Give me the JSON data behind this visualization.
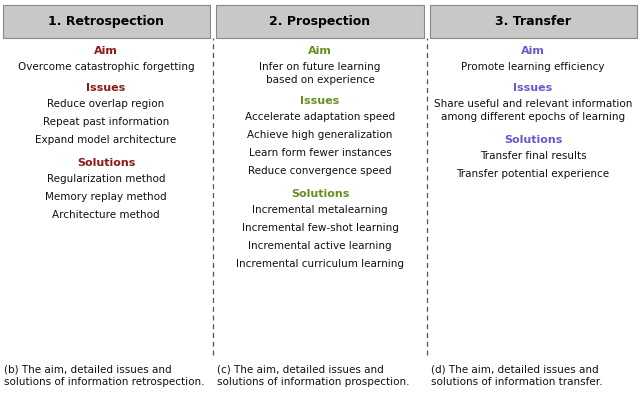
{
  "columns": [
    {
      "title": "1. Retrospection",
      "title_color": "#000000",
      "header_bg": "#c8c8c8",
      "aim_color": "#8B1A1A",
      "issues_color": "#8B1A1A",
      "solutions_color": "#8B1A1A",
      "aim": "Aim",
      "aim_text": [
        "Overcome catastrophic forgetting"
      ],
      "issues": "Issues",
      "issues_text": [
        "Reduce overlap region",
        "Repeat past information",
        "Expand model architecture"
      ],
      "solutions": "Solutions",
      "solutions_text": [
        "Regularization method",
        "Memory replay method",
        "Architecture method"
      ],
      "caption": "(b) The aim, detailed issues and\nsolutions of information retrospection."
    },
    {
      "title": "2. Prospection",
      "title_color": "#000000",
      "header_bg": "#c8c8c8",
      "aim_color": "#6B8E23",
      "issues_color": "#6B8E23",
      "solutions_color": "#6B8E23",
      "aim": "Aim",
      "aim_text": [
        "Infer on future learning\nbased on experience"
      ],
      "issues": "Issues",
      "issues_text": [
        "Accelerate adaptation speed",
        "Achieve high generalization",
        "Learn form fewer instances",
        "Reduce convergence speed"
      ],
      "solutions": "Solutions",
      "solutions_text": [
        "Incremental metalearning",
        "Incremental few-shot learning",
        "Incremental active learning",
        "Incremental curriculum learning"
      ],
      "caption": "(c) The aim, detailed issues and\nsolutions of information prospection."
    },
    {
      "title": "3. Transfer",
      "title_color": "#000000",
      "header_bg": "#c8c8c8",
      "aim_color": "#6A5ACD",
      "issues_color": "#6A5ACD",
      "solutions_color": "#6A5ACD",
      "aim": "Aim",
      "aim_text": [
        "Promote learning efficiency"
      ],
      "issues": "Issues",
      "issues_text": [
        "Share useful and relevant information\namong different epochs of learning"
      ],
      "solutions": "Solutions",
      "solutions_text": [
        "Transfer final results",
        "Transfer potential experience"
      ],
      "caption": "(d) The aim, detailed issues and\nsolutions of information transfer."
    }
  ],
  "bg_color": "#ffffff",
  "divider_color": "#555555",
  "header_bg": "#c8c8c8",
  "body_fontsize": 7.5,
  "header_fontsize": 9,
  "section_fontsize": 8,
  "caption_fontsize": 7.5
}
